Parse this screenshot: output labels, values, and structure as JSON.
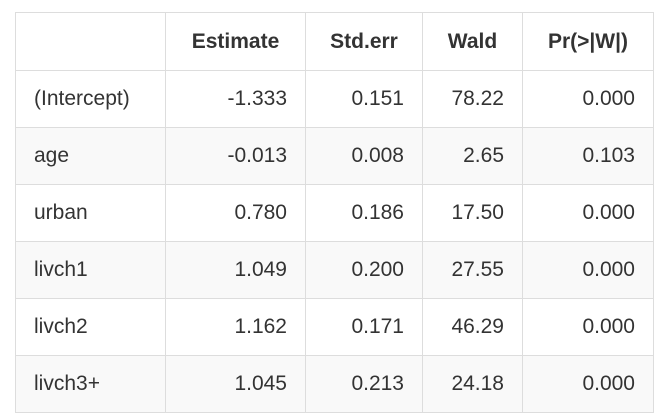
{
  "table": {
    "headers": [
      "",
      "Estimate",
      "Std.err",
      "Wald",
      "Pr(>|W|)"
    ],
    "rows": [
      [
        "(Intercept)",
        "-1.333",
        "0.151",
        "78.22",
        "0.000"
      ],
      [
        "age",
        "-0.013",
        "0.008",
        "2.65",
        "0.103"
      ],
      [
        "urban",
        "0.780",
        "0.186",
        "17.50",
        "0.000"
      ],
      [
        "livch1",
        "1.049",
        "0.200",
        "27.55",
        "0.000"
      ],
      [
        "livch2",
        "1.162",
        "0.171",
        "46.29",
        "0.000"
      ],
      [
        "livch3+",
        "1.045",
        "0.213",
        "24.18",
        "0.000"
      ]
    ]
  },
  "colors": {
    "border": "#dddddd",
    "stripe": "#f9f9f9",
    "text": "#333333"
  }
}
